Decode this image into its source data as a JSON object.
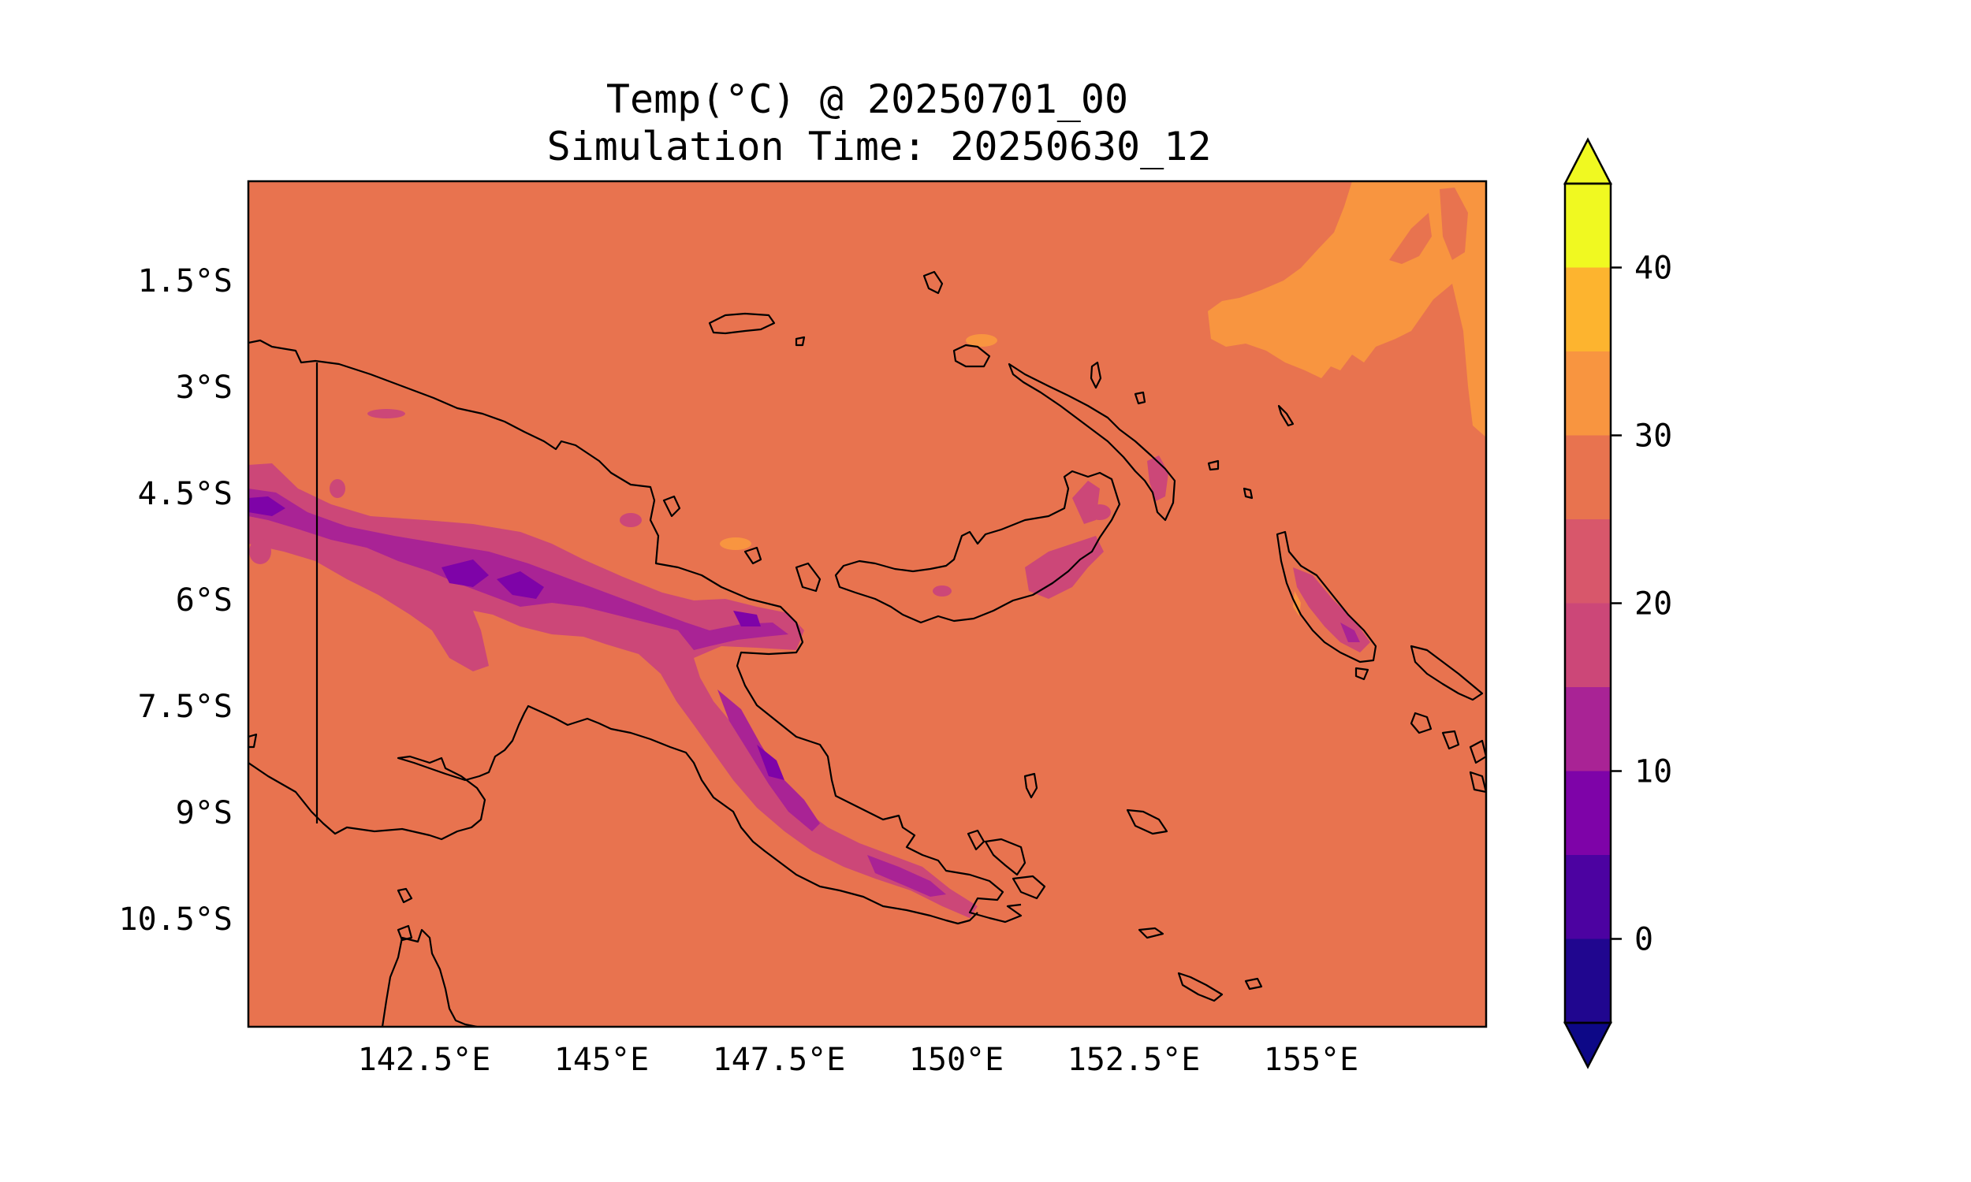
{
  "title": {
    "line1": "Temp(°C) @ 20250701_00",
    "line2": "Simulation Time: 20250630_12"
  },
  "map": {
    "lat_ticks": [
      "1.5°S",
      "3°S",
      "4.5°S",
      "6°S",
      "7.5°S",
      "9°S",
      "10.5°S"
    ],
    "lon_ticks": [
      "142.5°E",
      "145°E",
      "147.5°E",
      "150°E",
      "152.5°E",
      "155°E"
    ],
    "extent": {
      "lon_min": 140.0,
      "lon_max": 157.4,
      "lat_min": -12.3,
      "lat_max": -0.1
    }
  },
  "colorbar": {
    "levels": [
      -5,
      0,
      5,
      10,
      15,
      20,
      25,
      30,
      35,
      40,
      45
    ],
    "tick_labels": [
      "0",
      "10",
      "20",
      "30",
      "40"
    ],
    "colors": [
      "#20068f",
      "#4c02a1",
      "#7e03a8",
      "#a92395",
      "#cc4778",
      "#d8576b",
      "#e8734f",
      "#f89540",
      "#fdb42f",
      "#f0f921"
    ],
    "under_color": "#0d0887",
    "over_color": "#f0f921"
  },
  "colors": {
    "ocean": "#e8734f",
    "warm_sea": "#f89540",
    "highland_1": "#cc4778",
    "highland_2": "#a92395",
    "highland_3": "#7e03a8",
    "coast": "#000000"
  }
}
